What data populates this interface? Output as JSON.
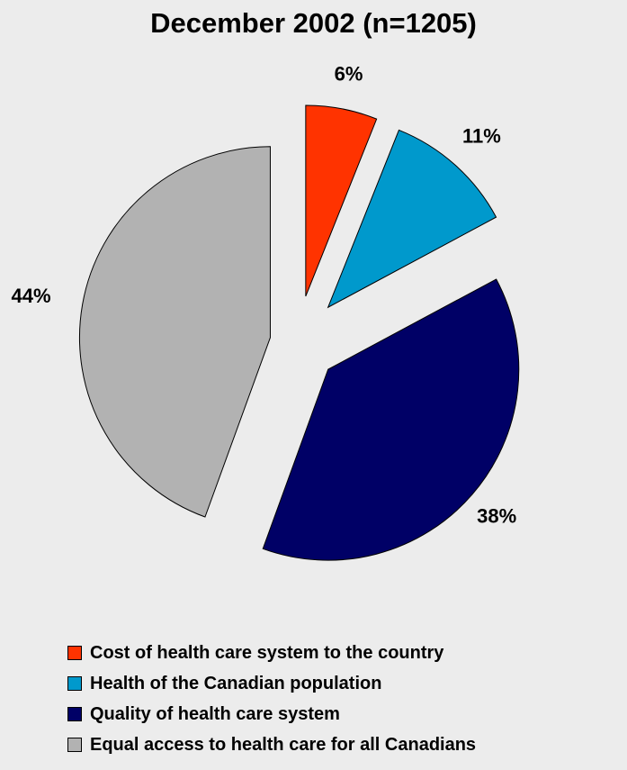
{
  "chart_data": {
    "type": "pie",
    "title": "December 2002 (n=1205)",
    "slices": [
      {
        "label": "Cost of health care system to the country",
        "value": 6,
        "display": "6%",
        "color": "#ff3300"
      },
      {
        "label": "Health of the Canadian population",
        "value": 11,
        "display": "11%",
        "color": "#0099cc"
      },
      {
        "label": "Quality of health care system",
        "value": 38,
        "display": "38%",
        "color": "#000066"
      },
      {
        "label": "Equal access to health care for all Canadians",
        "value": 44,
        "display": "44%",
        "color": "#b2b2b2"
      }
    ],
    "legend_position": "bottom"
  }
}
